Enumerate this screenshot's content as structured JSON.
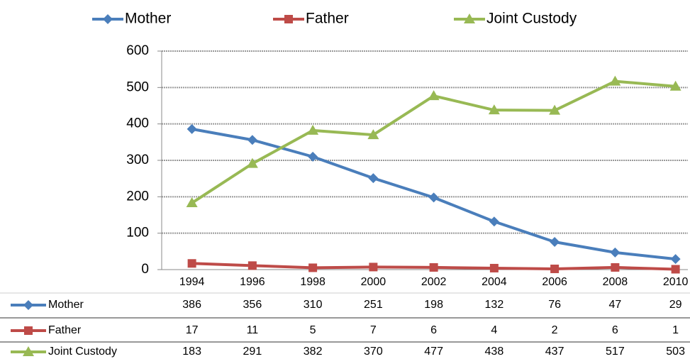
{
  "chart_data": {
    "type": "line",
    "categories": [
      "1994",
      "1996",
      "1998",
      "2000",
      "2002",
      "2004",
      "2006",
      "2008",
      "2010"
    ],
    "series": [
      {
        "name": "Mother",
        "color": "#4a7ebb",
        "marker": "diamond",
        "values": [
          386,
          356,
          310,
          251,
          198,
          132,
          76,
          47,
          29
        ]
      },
      {
        "name": "Father",
        "color": "#be4b48",
        "marker": "square",
        "values": [
          17,
          11,
          5,
          7,
          6,
          4,
          2,
          6,
          1
        ]
      },
      {
        "name": "Joint Custody",
        "color": "#98b954",
        "marker": "triangle",
        "values": [
          183,
          291,
          382,
          370,
          477,
          438,
          437,
          517,
          503
        ]
      }
    ],
    "ylim": [
      0,
      600
    ],
    "yticks": [
      0,
      100,
      200,
      300,
      400,
      500,
      600
    ],
    "grid": true,
    "legend": "top",
    "data_table": true
  }
}
